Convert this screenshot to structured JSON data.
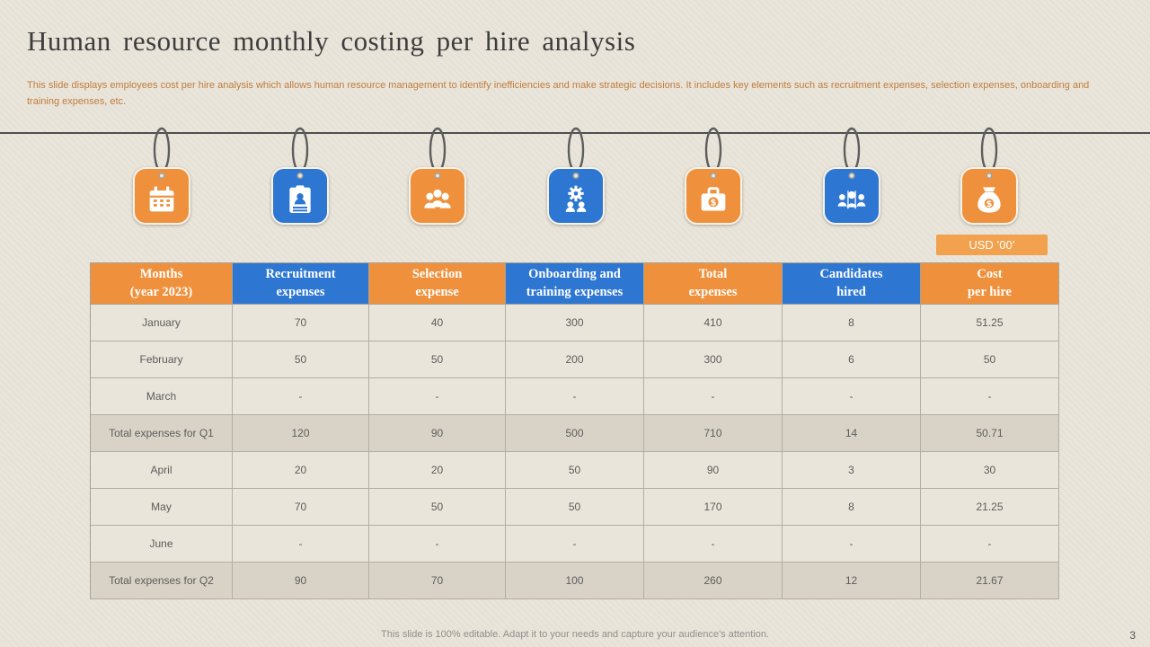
{
  "slide": {
    "title": "Human resource monthly costing per hire analysis",
    "subtitle": "This slide displays employees cost per hire analysis which allows human resource management to identify inefficiencies and make strategic decisions. It includes key elements such as recruitment expenses, selection expenses, onboarding and training expenses, etc.",
    "footer": "This slide is 100% editable. Adapt it to your needs and capture your audience's attention.",
    "page_number": "3"
  },
  "badge": {
    "label": "USD ’00’"
  },
  "colors": {
    "orange": "#ef913c",
    "blue": "#2d77d2",
    "background": "#eae5da",
    "total_row": "#d9d3c7"
  },
  "tags": [
    {
      "icon": "calendar-icon",
      "color": "orange"
    },
    {
      "icon": "clipboard-person-icon",
      "color": "blue"
    },
    {
      "icon": "team-icon",
      "color": "orange"
    },
    {
      "icon": "gear-team-icon",
      "color": "blue"
    },
    {
      "icon": "briefcase-dollar-icon",
      "color": "orange"
    },
    {
      "icon": "candidates-icon",
      "color": "blue"
    },
    {
      "icon": "money-bag-icon",
      "color": "orange"
    }
  ],
  "table": {
    "headers": [
      {
        "label": "Months\n(year 2023)",
        "color": "orange"
      },
      {
        "label": "Recruitment\nexpenses",
        "color": "blue"
      },
      {
        "label": "Selection\nexpense",
        "color": "orange"
      },
      {
        "label": "Onboarding and\ntraining expenses",
        "color": "blue"
      },
      {
        "label": "Total\nexpenses",
        "color": "orange"
      },
      {
        "label": "Candidates\nhired",
        "color": "blue"
      },
      {
        "label": "Cost\nper hire",
        "color": "orange"
      }
    ],
    "rows": [
      {
        "label": "January",
        "cells": [
          "70",
          "40",
          "300",
          "410",
          "8",
          "51.25"
        ],
        "total": false
      },
      {
        "label": "February",
        "cells": [
          "50",
          "50",
          "200",
          "300",
          "6",
          "50"
        ],
        "total": false
      },
      {
        "label": "March",
        "cells": [
          "-",
          "-",
          "-",
          "-",
          "-",
          "-"
        ],
        "total": false
      },
      {
        "label": "Total expenses for Q1",
        "cells": [
          "120",
          "90",
          "500",
          "710",
          "14",
          "50.71"
        ],
        "total": true
      },
      {
        "label": "April",
        "cells": [
          "20",
          "20",
          "50",
          "90",
          "3",
          "30"
        ],
        "total": false
      },
      {
        "label": "May",
        "cells": [
          "70",
          "50",
          "50",
          "170",
          "8",
          "21.25"
        ],
        "total": false
      },
      {
        "label": "June",
        "cells": [
          "-",
          "-",
          "-",
          "-",
          "-",
          "-"
        ],
        "total": false
      },
      {
        "label": "Total expenses for Q2",
        "cells": [
          "90",
          "70",
          "100",
          "260",
          "12",
          "21.67"
        ],
        "total": true
      }
    ]
  }
}
